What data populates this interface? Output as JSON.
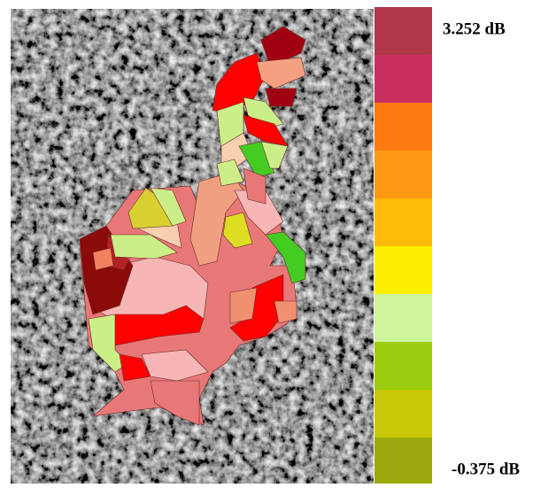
{
  "colorbar": {
    "max_label": "3.252 dB",
    "min_label": "-0.375 dB"
  }
}
